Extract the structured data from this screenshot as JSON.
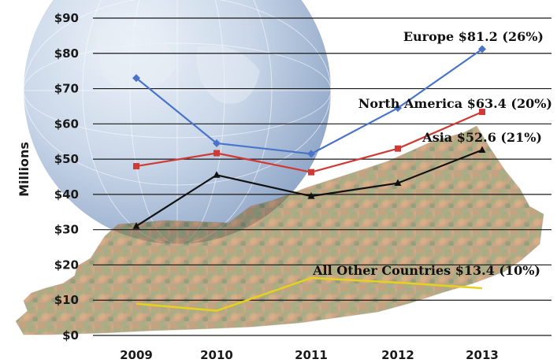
{
  "chart_data": {
    "type": "line",
    "title": "",
    "xlabel": "",
    "ylabel": "Millions",
    "x": [
      "2009",
      "2010",
      "2011",
      "2012",
      "2013"
    ],
    "ylim": [
      0,
      90
    ],
    "yticks": [
      "$0",
      "$10",
      "$20",
      "$30",
      "$40",
      "$50",
      "$60",
      "$70",
      "$80",
      "$90"
    ],
    "grid": true,
    "series": [
      {
        "name": "Europe",
        "label": "Europe $81.2 (26%)",
        "color": "#4a74c9",
        "marker": "diamond",
        "values": [
          73,
          54.5,
          51.5,
          64.5,
          81.2
        ]
      },
      {
        "name": "North America",
        "label": "North America $63.4 (20%)",
        "color": "#d03a34",
        "marker": "square",
        "values": [
          48,
          51.7,
          46.3,
          53,
          63.4
        ]
      },
      {
        "name": "Asia",
        "label": "Asia $52.6 (21%)",
        "color": "#111111",
        "marker": "triangle",
        "values": [
          31,
          45.5,
          39.5,
          43.2,
          52.6
        ]
      },
      {
        "name": "All Other Countries",
        "label": "All Other Countries $13.4 (10%)",
        "color": "#e6d21a",
        "marker": "none",
        "values": [
          9,
          7,
          16.3,
          15,
          13.4
        ]
      }
    ],
    "background": {
      "globe_color": "#9fb6d3",
      "terrain_colors": [
        "#7a8a4e",
        "#c46a3c",
        "#3f5f2a"
      ]
    }
  }
}
